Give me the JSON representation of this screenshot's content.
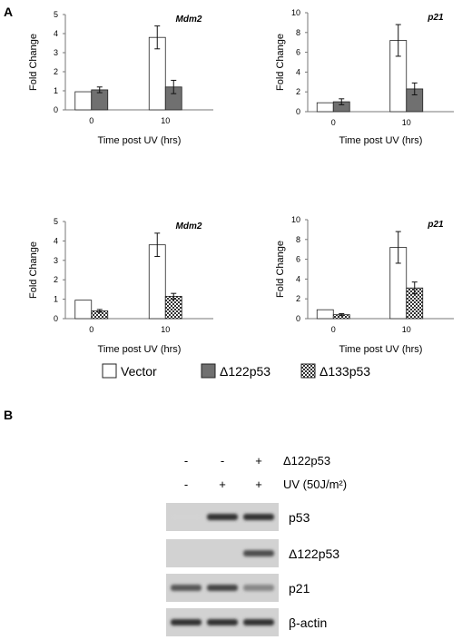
{
  "panel_a_label": "A",
  "panel_b_label": "B",
  "chart_data": [
    {
      "type": "bar",
      "title": "Mdm2",
      "ylabel": "Fold Change",
      "xlabel": "Time post UV (hrs)",
      "categories": [
        "0",
        "10"
      ],
      "ylim": [
        0,
        5
      ],
      "yticks": [
        0,
        1,
        2,
        3,
        4,
        5
      ],
      "grid": false,
      "series": [
        {
          "name": "Vector",
          "values": [
            0.95,
            3.8
          ],
          "errors": [
            0.0,
            0.6
          ],
          "fill": "#ffffff"
        },
        {
          "name": "Δ122p53",
          "values": [
            1.05,
            1.2
          ],
          "errors": [
            0.15,
            0.35
          ],
          "fill": "#707070"
        }
      ]
    },
    {
      "type": "bar",
      "title": "p21",
      "ylabel": "Fold Change",
      "xlabel": "Time post UV (hrs)",
      "categories": [
        "0",
        "10"
      ],
      "ylim": [
        0,
        10
      ],
      "yticks": [
        0,
        2,
        4,
        6,
        8,
        10
      ],
      "grid": false,
      "series": [
        {
          "name": "Vector",
          "values": [
            0.9,
            7.2
          ],
          "errors": [
            0.0,
            1.6
          ],
          "fill": "#ffffff"
        },
        {
          "name": "Δ122p53",
          "values": [
            1.0,
            2.3
          ],
          "errors": [
            0.3,
            0.6
          ],
          "fill": "#707070"
        }
      ]
    },
    {
      "type": "bar",
      "title": "Mdm2",
      "ylabel": "Fold Change",
      "xlabel": "Time post UV (hrs)",
      "categories": [
        "0",
        "10"
      ],
      "ylim": [
        0,
        5
      ],
      "yticks": [
        0,
        1,
        2,
        3,
        4,
        5
      ],
      "grid": false,
      "series": [
        {
          "name": "Vector",
          "values": [
            0.95,
            3.8
          ],
          "errors": [
            0.0,
            0.6
          ],
          "fill": "#ffffff"
        },
        {
          "name": "Δ133p53",
          "values": [
            0.4,
            1.15
          ],
          "errors": [
            0.07,
            0.15
          ],
          "fill": "checker"
        }
      ]
    },
    {
      "type": "bar",
      "title": "p21",
      "ylabel": "Fold Change",
      "xlabel": "Time post UV (hrs)",
      "categories": [
        "0",
        "10"
      ],
      "ylim": [
        0,
        10
      ],
      "yticks": [
        0,
        2,
        4,
        6,
        8,
        10
      ],
      "grid": false,
      "series": [
        {
          "name": "Vector",
          "values": [
            0.9,
            7.2
          ],
          "errors": [
            0.0,
            1.6
          ],
          "fill": "#ffffff"
        },
        {
          "name": "Δ133p53",
          "values": [
            0.4,
            3.1
          ],
          "errors": [
            0.1,
            0.6
          ],
          "fill": "checker"
        }
      ]
    }
  ],
  "legend": {
    "items": [
      {
        "label": "Vector",
        "fill": "#ffffff"
      },
      {
        "label": "Δ122p53",
        "fill": "#707070"
      },
      {
        "label": "Δ133p53",
        "fill": "checker"
      }
    ]
  },
  "blot": {
    "conditions": [
      {
        "label": "Δ122p53",
        "marks": [
          "-",
          "-",
          "+"
        ]
      },
      {
        "label": "UV (50J/m²)",
        "marks": [
          "-",
          "+",
          "+"
        ]
      }
    ],
    "rows": [
      {
        "label": "p53",
        "intensity": [
          0.05,
          0.9,
          0.9
        ]
      },
      {
        "label": "Δ122p53",
        "intensity": [
          0.0,
          0.0,
          0.75
        ]
      },
      {
        "label": "p21",
        "intensity": [
          0.7,
          0.8,
          0.45
        ]
      },
      {
        "label": "β-actin",
        "intensity": [
          0.9,
          0.9,
          0.9
        ]
      }
    ]
  }
}
